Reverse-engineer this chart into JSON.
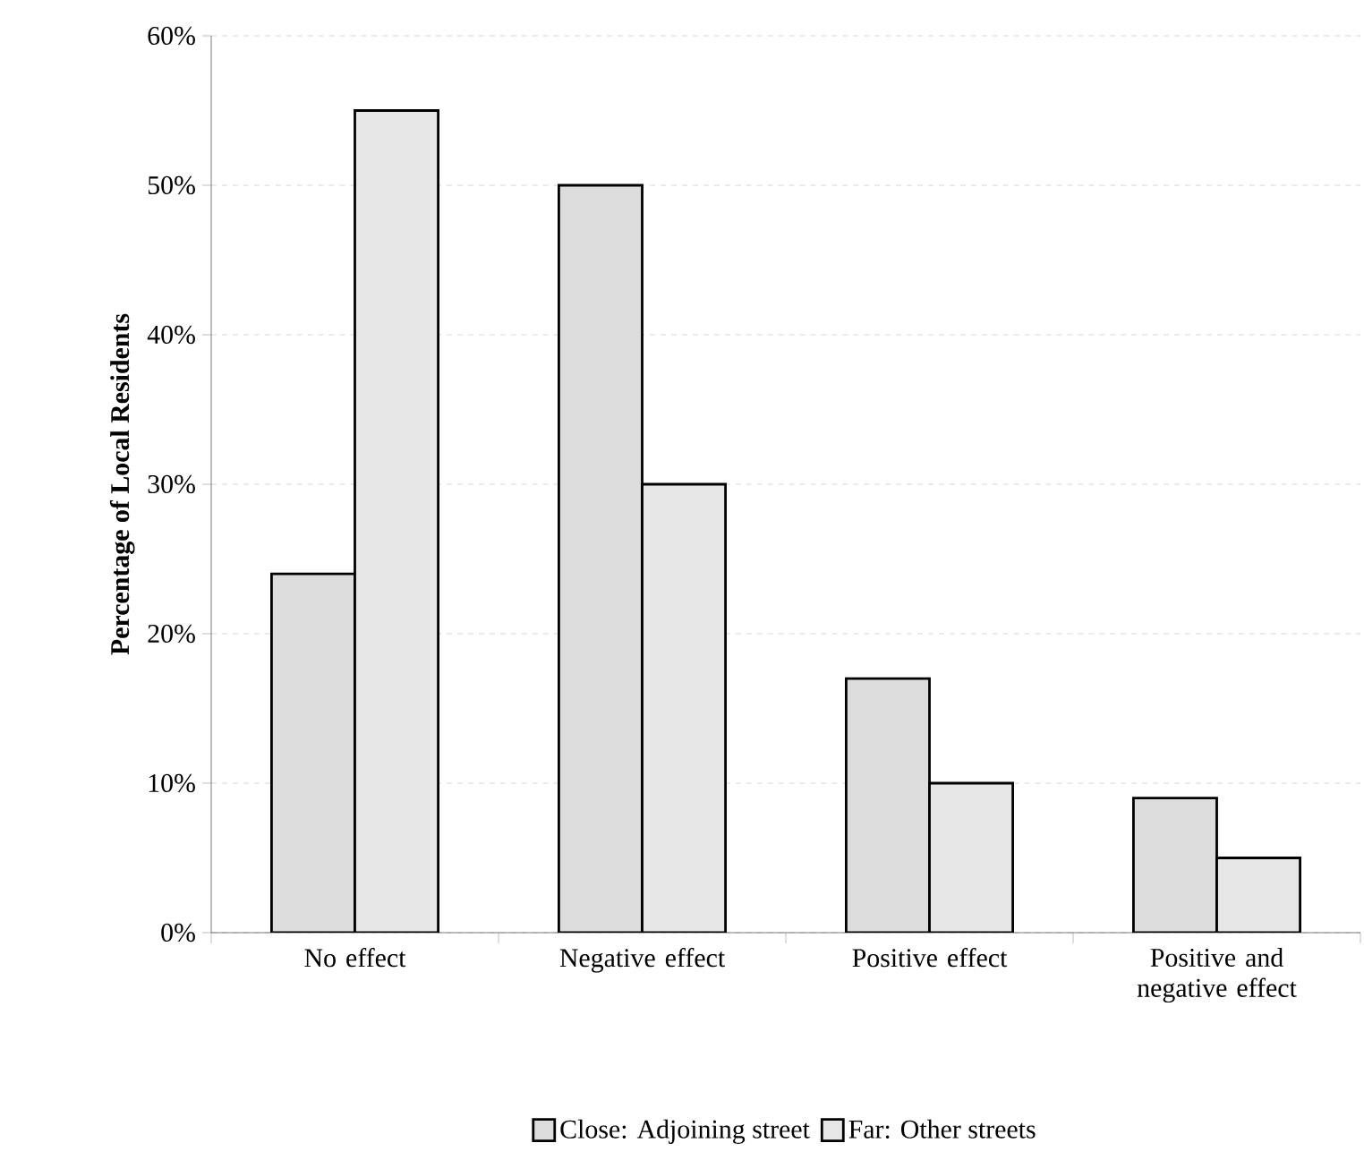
{
  "chart_data": {
    "type": "bar",
    "ylabel": "Percentage of Local Residents",
    "categories": [
      "No effect",
      "Negative effect",
      "Positive effect",
      "Positive and negative effect"
    ],
    "series": [
      {
        "name": "Close: Adjoining street",
        "color": "#dcdcdc",
        "values": [
          24,
          50,
          17,
          9
        ]
      },
      {
        "name": "Far: Other streets",
        "color": "#e6e6e6",
        "values": [
          55,
          30,
          10,
          5
        ]
      }
    ],
    "ylim": [
      0,
      60
    ],
    "yticks": [
      {
        "value": 0,
        "label": "0%"
      },
      {
        "value": 10,
        "label": "10%"
      },
      {
        "value": 20,
        "label": "20%"
      },
      {
        "value": 30,
        "label": "30%"
      },
      {
        "value": 40,
        "label": "40%"
      },
      {
        "value": 50,
        "label": "50%"
      },
      {
        "value": 60,
        "label": "60%"
      }
    ],
    "grid": "y",
    "legend": "bottom"
  }
}
